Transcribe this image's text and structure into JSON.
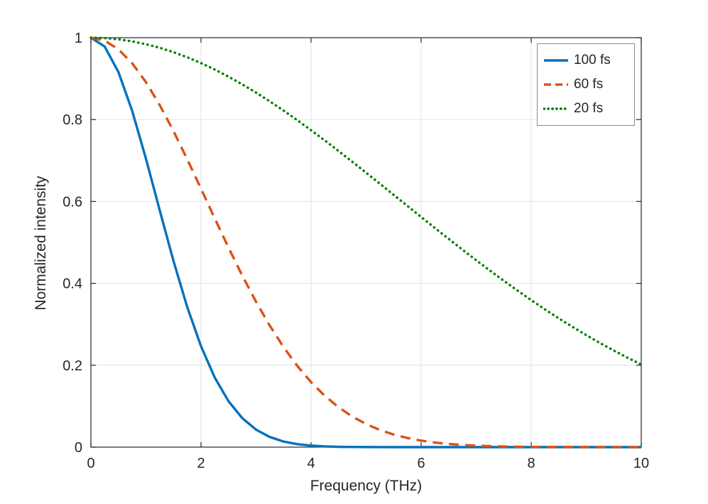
{
  "chart_data": {
    "type": "line",
    "title": "",
    "xlabel": "Frequency (THz)",
    "ylabel": "Normalized intensity",
    "xlim": [
      0,
      10
    ],
    "ylim": [
      0,
      1
    ],
    "xticks": [
      0,
      2,
      4,
      6,
      8,
      10
    ],
    "xtick_labels": [
      "0",
      "2",
      "4",
      "6",
      "8",
      "10"
    ],
    "yticks": [
      0,
      0.2,
      0.4,
      0.6,
      0.8,
      1
    ],
    "ytick_labels": [
      "0",
      "0.2",
      "0.4",
      "0.6",
      "0.8",
      "1"
    ],
    "grid": true,
    "legend_position": "top-right",
    "axis_color": "#262626",
    "grid_color": "#e2e2e2",
    "x": [
      0,
      0.25,
      0.5,
      0.75,
      1,
      1.25,
      1.5,
      1.75,
      2,
      2.25,
      2.5,
      2.75,
      3,
      3.25,
      3.5,
      3.75,
      4,
      4.25,
      4.5,
      4.75,
      5,
      5.25,
      5.5,
      5.75,
      6,
      6.25,
      6.5,
      6.75,
      7,
      7.25,
      7.5,
      7.75,
      8,
      8.25,
      8.5,
      8.75,
      9,
      9.25,
      9.5,
      9.75,
      10
    ],
    "series": [
      {
        "name": "100 fs",
        "style": "solid",
        "color": "#0072BD",
        "values": [
          1,
          0.9784,
          0.9162,
          0.8213,
          0.7047,
          0.5787,
          0.455,
          0.3423,
          0.2466,
          0.17,
          0.1122,
          0.0709,
          0.0428,
          0.0248,
          0.0137,
          0.0073,
          0.0037,
          0.0018,
          0.0008,
          0.0004,
          0.0002,
          0.0001,
          0,
          0,
          0,
          0,
          0,
          0,
          0,
          0,
          0,
          0,
          0,
          0,
          0,
          0,
          0,
          0,
          0,
          0,
          0
        ]
      },
      {
        "name": "60 fs",
        "style": "dashed",
        "color": "#D95319",
        "values": [
          1,
          0.9928,
          0.9717,
          0.9374,
          0.8914,
          0.8355,
          0.772,
          0.7031,
          0.6313,
          0.5587,
          0.4874,
          0.4191,
          0.3552,
          0.2968,
          0.2444,
          0.1984,
          0.1588,
          0.1253,
          0.0974,
          0.0747,
          0.0564,
          0.042,
          0.0308,
          0.0223,
          0.0159,
          0.0112,
          0.0078,
          0.0053,
          0.0036,
          0.0024,
          0.0016,
          0.001,
          0.0006,
          0.0004,
          0.0003,
          0.0002,
          0.0001,
          0.0001,
          0,
          0,
          0
        ]
      },
      {
        "name": "20 fs",
        "style": "dotted",
        "color": "#008000",
        "values": [
          1,
          0.999,
          0.996,
          0.991,
          0.9841,
          0.9753,
          0.9646,
          0.9522,
          0.938,
          0.9222,
          0.9048,
          0.886,
          0.8659,
          0.8445,
          0.822,
          0.7985,
          0.7741,
          0.749,
          0.7232,
          0.6969,
          0.6703,
          0.6434,
          0.6163,
          0.5893,
          0.5621,
          0.5353,
          0.5087,
          0.4824,
          0.4566,
          0.4313,
          0.4066,
          0.3825,
          0.3591,
          0.3365,
          0.3147,
          0.2938,
          0.2736,
          0.2544,
          0.236,
          0.2185,
          0.2019
        ]
      }
    ]
  }
}
